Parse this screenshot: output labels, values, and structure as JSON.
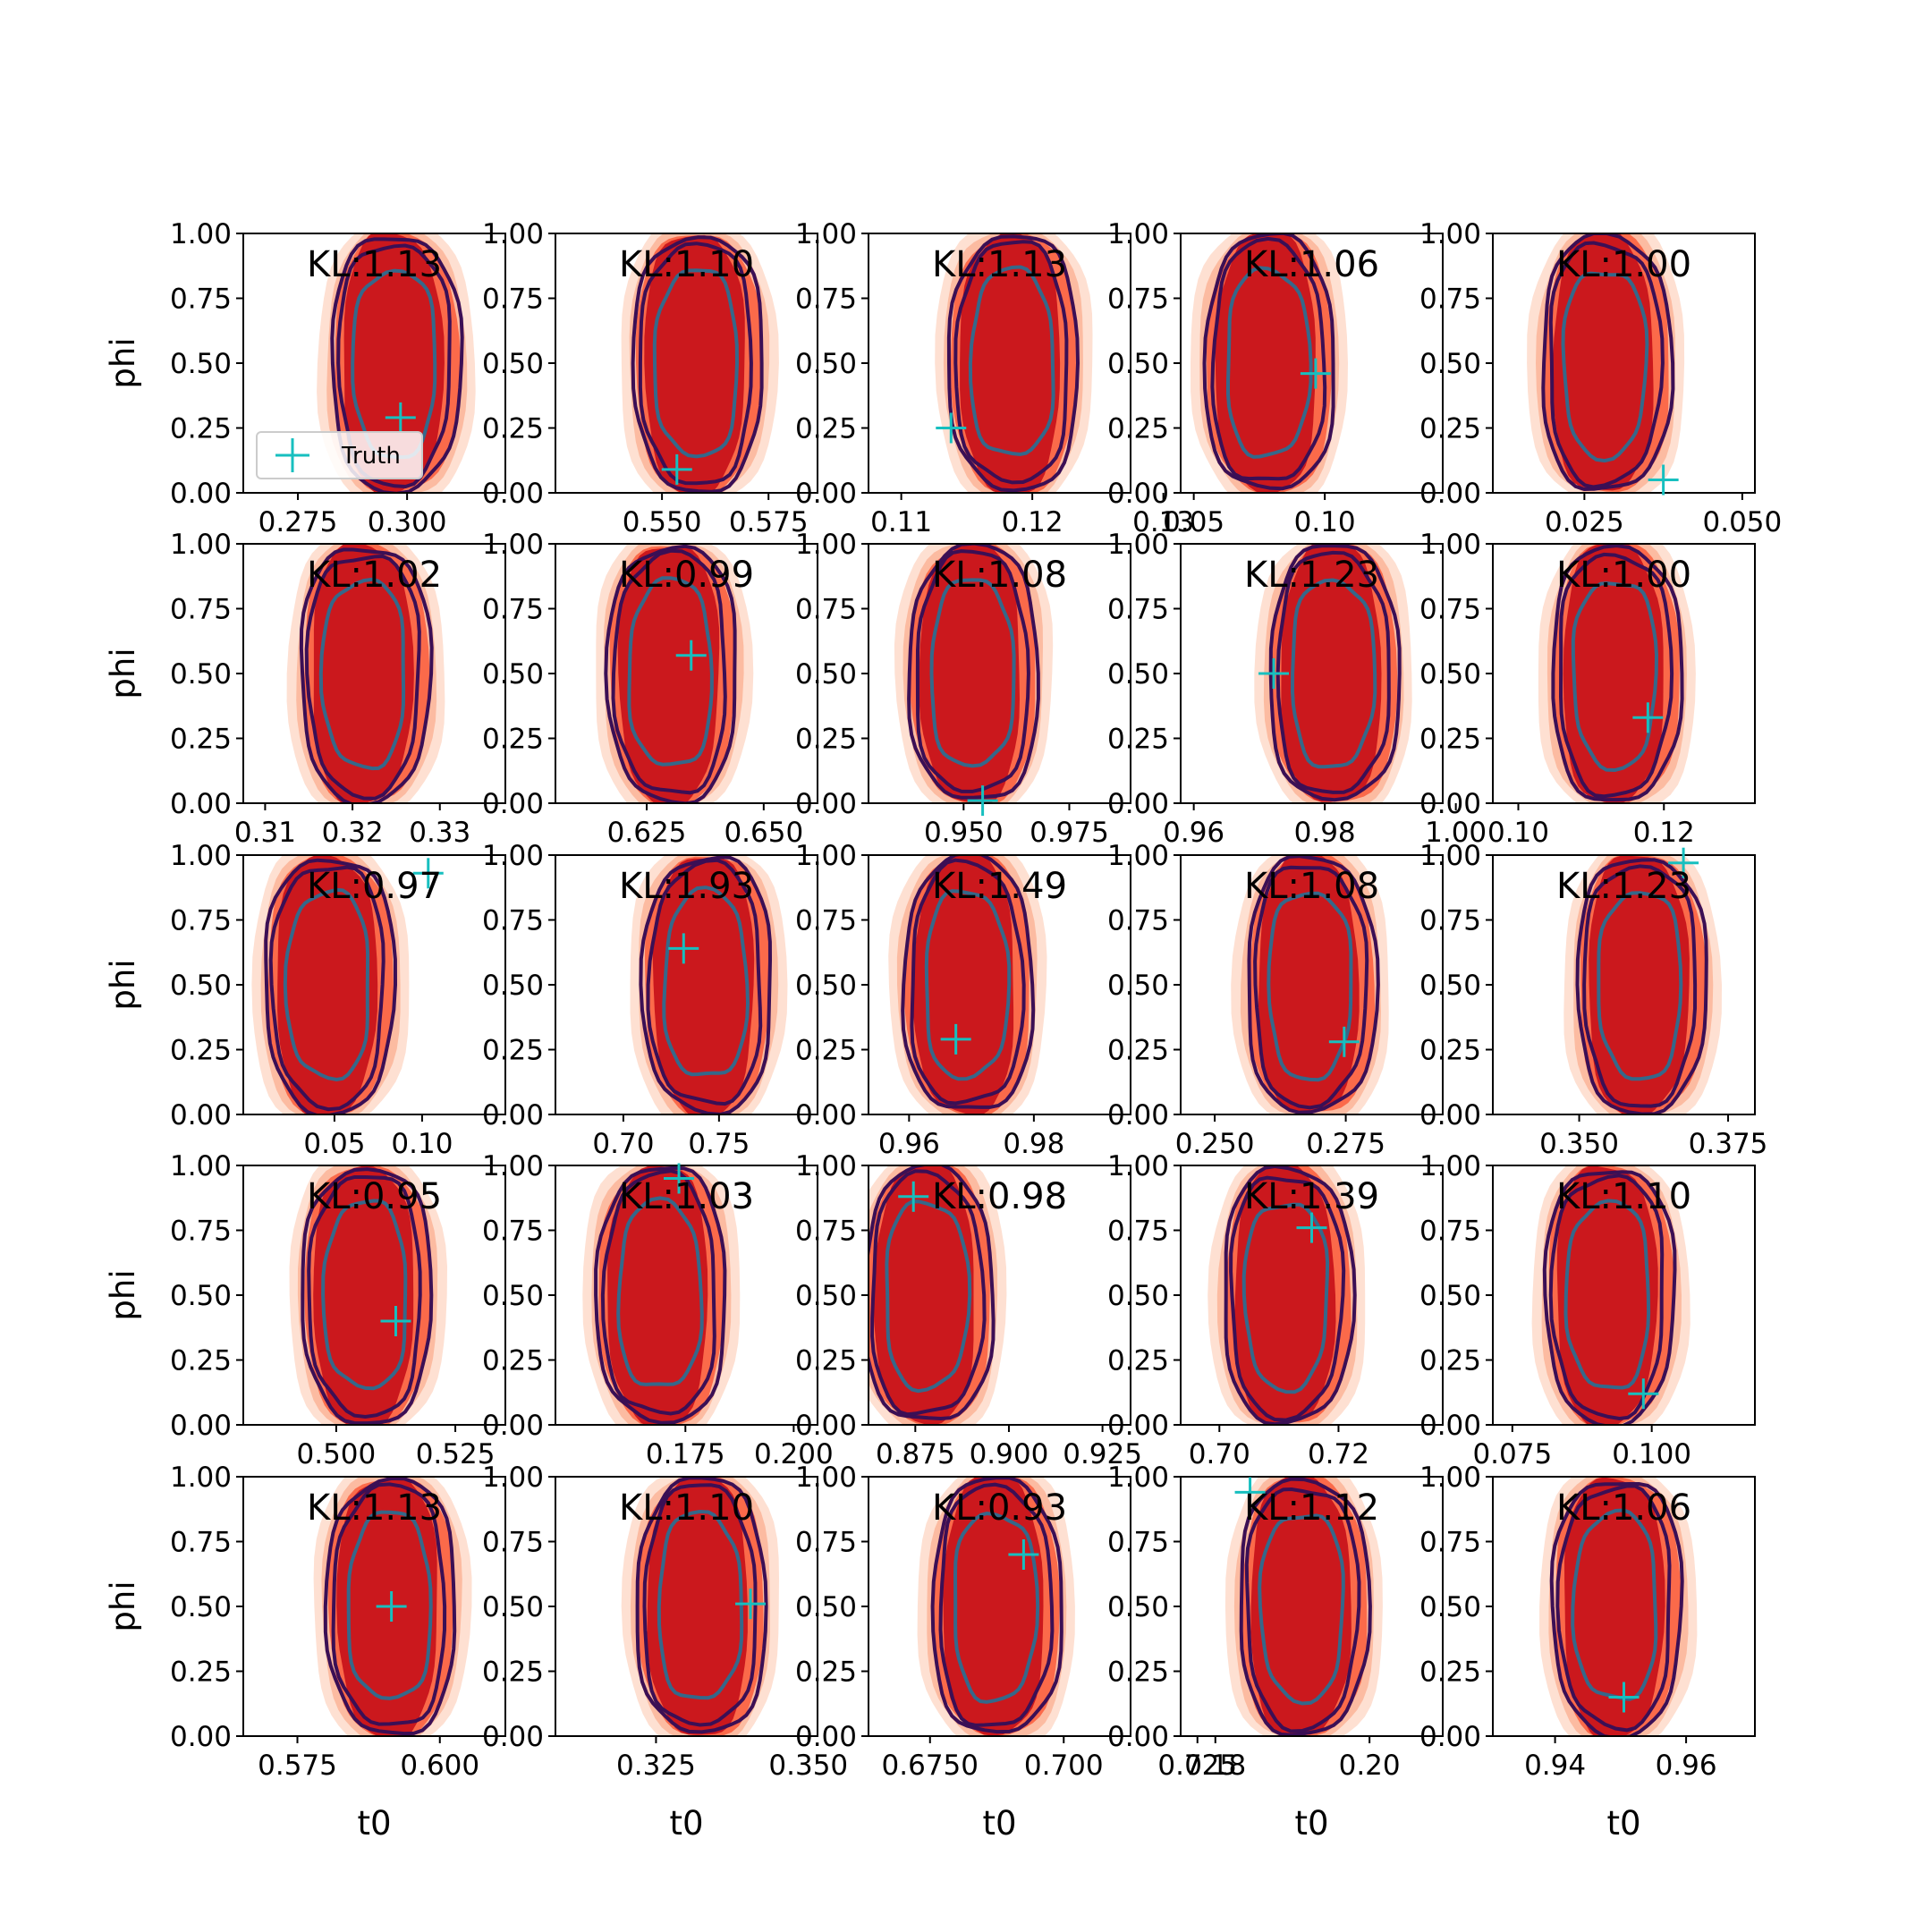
{
  "figure": {
    "legend_label": "Truth",
    "y_axis_label": "phi",
    "x_axis_label": "t0"
  },
  "colors": {
    "truth": "#17bfbf",
    "contour_outer": "#3b0f55",
    "contour_inner": "#35688a",
    "fill_core": "#cb181d",
    "fill_mid": "#fb6a4a",
    "fill_light": "#fcbba1",
    "fill_faint": "#fee0d2"
  },
  "chart_data": [
    {
      "type": "scatter",
      "row": 0,
      "col": 0,
      "title": "KL:1.13",
      "x": [
        0.2985
      ],
      "y": [
        0.29
      ],
      "xticks": [
        0.275,
        0.3
      ],
      "xticklabels": [
        "0.275",
        "0.300"
      ],
      "xlim": [
        0.2625,
        0.3225
      ],
      "ylim": [
        0,
        1
      ],
      "xlabel": "",
      "ylabel": "phi",
      "center_t0": 0.2975,
      "legend": true
    },
    {
      "type": "scatter",
      "row": 0,
      "col": 1,
      "title": "KL:1.10",
      "x": [
        0.5535
      ],
      "y": [
        0.09
      ],
      "xticks": [
        0.55,
        0.575
      ],
      "xticklabels": [
        "0.550",
        "0.575"
      ],
      "xlim": [
        0.525,
        0.5865
      ],
      "ylim": [
        0,
        1
      ],
      "xlabel": "",
      "ylabel": "",
      "center_t0": 0.5585
    },
    {
      "type": "scatter",
      "row": 0,
      "col": 2,
      "title": "KL:1.13",
      "x": [
        0.1138
      ],
      "y": [
        0.25
      ],
      "xticks": [
        0.11,
        0.12,
        0.13
      ],
      "xticklabels": [
        "0.11",
        "0.12",
        "0.13"
      ],
      "xlim": [
        0.1075,
        0.1275
      ],
      "ylim": [
        0,
        1
      ],
      "xlabel": "",
      "ylabel": "",
      "center_t0": 0.1186
    },
    {
      "type": "scatter",
      "row": 0,
      "col": 3,
      "title": "KL:1.06",
      "x": [
        0.0965
      ],
      "y": [
        0.46
      ],
      "xticks": [
        0.05,
        0.1
      ],
      "xticklabels": [
        "0.05",
        "0.10"
      ],
      "xlim": [
        0.045,
        0.145
      ],
      "ylim": [
        0,
        1
      ],
      "xlabel": "",
      "ylabel": "",
      "center_t0": 0.079
    },
    {
      "type": "scatter",
      "row": 0,
      "col": 4,
      "title": "KL:1.00",
      "x": [
        0.0375
      ],
      "y": [
        0.05
      ],
      "xticks": [
        0.025,
        0.05
      ],
      "xticklabels": [
        "0.025",
        "0.050"
      ],
      "xlim": [
        0.0105,
        0.052
      ],
      "ylim": [
        0,
        1
      ],
      "xlabel": "",
      "ylabel": "",
      "center_t0": 0.0285
    },
    {
      "type": "scatter",
      "row": 1,
      "col": 0,
      "title": "KL:1.02",
      "x": [],
      "y": [],
      "xticks": [
        0.31,
        0.32,
        0.33
      ],
      "xticklabels": [
        "0.31",
        "0.32",
        "0.33"
      ],
      "xlim": [
        0.3075,
        0.3375
      ],
      "ylim": [
        0,
        1
      ],
      "xlabel": "",
      "ylabel": "phi",
      "center_t0": 0.3215
    },
    {
      "type": "scatter",
      "row": 1,
      "col": 1,
      "title": "KL:0.99",
      "x": [
        0.6345
      ],
      "y": [
        0.57
      ],
      "xticks": [
        0.625,
        0.65
      ],
      "xticklabels": [
        "0.625",
        "0.650"
      ],
      "xlim": [
        0.6055,
        0.6615
      ],
      "ylim": [
        0,
        1
      ],
      "xlabel": "",
      "ylabel": "",
      "center_t0": 0.6305
    },
    {
      "type": "scatter",
      "row": 1,
      "col": 2,
      "title": "KL:1.08",
      "x": [
        0.9545
      ],
      "y": [
        0.01
      ],
      "xticks": [
        0.95,
        0.975
      ],
      "xticklabels": [
        "0.950",
        "0.975"
      ],
      "xlim": [
        0.9275,
        0.9895
      ],
      "ylim": [
        0,
        1
      ],
      "xlabel": "",
      "ylabel": "",
      "center_t0": 0.9525
    },
    {
      "type": "scatter",
      "row": 1,
      "col": 3,
      "title": "KL:1.23",
      "x": [
        0.9722
      ],
      "y": [
        0.5
      ],
      "xticks": [
        0.96,
        0.98,
        1.0
      ],
      "xticklabels": [
        "0.96",
        "0.98",
        "1.00"
      ],
      "xlim": [
        0.958,
        0.998
      ],
      "ylim": [
        0,
        1
      ],
      "xlabel": "",
      "ylabel": "",
      "center_t0": 0.9815
    },
    {
      "type": "scatter",
      "row": 1,
      "col": 4,
      "title": "KL:1.00",
      "x": [
        0.1178
      ],
      "y": [
        0.33
      ],
      "xticks": [
        0.1,
        0.12
      ],
      "xticklabels": [
        "0.10",
        "0.12"
      ],
      "xlim": [
        0.0965,
        0.1325
      ],
      "ylim": [
        0,
        1
      ],
      "xlabel": "",
      "ylabel": "",
      "center_t0": 0.1135
    },
    {
      "type": "scatter",
      "row": 2,
      "col": 0,
      "title": "KL:0.97",
      "x": [
        0.1035
      ],
      "y": [
        0.93
      ],
      "xticks": [
        0.05,
        0.1
      ],
      "xticklabels": [
        "0.05",
        "0.10"
      ],
      "xlim": [
        -0.002,
        0.1475
      ],
      "ylim": [
        0,
        1
      ],
      "xlabel": "",
      "ylabel": "phi",
      "center_t0": 0.0475
    },
    {
      "type": "scatter",
      "row": 2,
      "col": 1,
      "title": "KL:1.93",
      "x": [
        0.7315
      ],
      "y": [
        0.64
      ],
      "xticks": [
        0.7,
        0.75
      ],
      "xticklabels": [
        "0.70",
        "0.75"
      ],
      "xlim": [
        0.6645,
        0.8015
      ],
      "ylim": [
        0,
        1
      ],
      "xlabel": "",
      "ylabel": "",
      "center_t0": 0.744
    },
    {
      "type": "scatter",
      "row": 2,
      "col": 2,
      "title": "KL:1.49",
      "x": [
        0.9675
      ],
      "y": [
        0.29
      ],
      "xticks": [
        0.96,
        0.98
      ],
      "xticklabels": [
        "0.96",
        "0.98"
      ],
      "xlim": [
        0.9535,
        0.9955
      ],
      "ylim": [
        0,
        1
      ],
      "xlabel": "",
      "ylabel": "",
      "center_t0": 0.9695
    },
    {
      "type": "scatter",
      "row": 2,
      "col": 3,
      "title": "KL:1.08",
      "x": [
        0.2747
      ],
      "y": [
        0.28
      ],
      "xticks": [
        0.25,
        0.275
      ],
      "xticklabels": [
        "0.250",
        "0.275"
      ],
      "xlim": [
        0.2435,
        0.2935
      ],
      "ylim": [
        0,
        1
      ],
      "xlabel": "",
      "ylabel": "",
      "center_t0": 0.2685
    },
    {
      "type": "scatter",
      "row": 2,
      "col": 4,
      "title": "KL:1.23",
      "x": [
        0.3675
      ],
      "y": [
        0.97
      ],
      "xticks": [
        0.35,
        0.375
      ],
      "xticklabels": [
        "0.350",
        "0.375"
      ],
      "xlim": [
        0.3355,
        0.3795
      ],
      "ylim": [
        0,
        1
      ],
      "xlabel": "",
      "ylabel": "",
      "center_t0": 0.3605
    },
    {
      "type": "scatter",
      "row": 3,
      "col": 0,
      "title": "KL:0.95",
      "x": [
        0.5125
      ],
      "y": [
        0.4
      ],
      "xticks": [
        0.5,
        0.525
      ],
      "xticklabels": [
        "0.500",
        "0.525"
      ],
      "xlim": [
        0.4805,
        0.5355
      ],
      "ylim": [
        0,
        1
      ],
      "xlabel": "",
      "ylabel": "phi",
      "center_t0": 0.5065
    },
    {
      "type": "scatter",
      "row": 3,
      "col": 1,
      "title": "KL:1.03",
      "x": [
        0.1735
      ],
      "y": [
        0.95
      ],
      "xticks": [
        0.175,
        0.2
      ],
      "xticklabels": [
        "0.175",
        "0.200"
      ],
      "xlim": [
        0.145,
        0.2055
      ],
      "ylim": [
        0,
        1
      ],
      "xlabel": "",
      "ylabel": "",
      "center_t0": 0.1695
    },
    {
      "type": "scatter",
      "row": 3,
      "col": 2,
      "title": "KL:0.98",
      "x": [
        0.8745
      ],
      "y": [
        0.88
      ],
      "xticks": [
        0.875,
        0.9,
        0.925
      ],
      "xticklabels": [
        "0.875",
        "0.900",
        "0.925"
      ],
      "xlim": [
        0.8625,
        0.9325
      ],
      "ylim": [
        0,
        1
      ],
      "xlabel": "",
      "ylabel": "",
      "center_t0": 0.8785
    },
    {
      "type": "scatter",
      "row": 3,
      "col": 3,
      "title": "KL:1.39",
      "x": [
        0.7155
      ],
      "y": [
        0.76
      ],
      "xticks": [
        0.7,
        0.72
      ],
      "xticklabels": [
        "0.70",
        "0.72"
      ],
      "xlim": [
        0.6935,
        0.7375
      ],
      "ylim": [
        0,
        1
      ],
      "xlabel": "",
      "ylabel": "",
      "center_t0": 0.7115
    },
    {
      "type": "scatter",
      "row": 3,
      "col": 4,
      "title": "KL:1.10",
      "x": [
        0.0985
      ],
      "y": [
        0.12
      ],
      "xticks": [
        0.075,
        0.1
      ],
      "xticklabels": [
        "0.075",
        "0.100"
      ],
      "xlim": [
        0.0715,
        0.1185
      ],
      "ylim": [
        0,
        1
      ],
      "xlabel": "",
      "ylabel": "",
      "center_t0": 0.0925
    },
    {
      "type": "scatter",
      "row": 4,
      "col": 0,
      "title": "KL:1.13",
      "x": [
        0.5915
      ],
      "y": [
        0.5
      ],
      "xticks": [
        0.575,
        0.6
      ],
      "xticklabels": [
        "0.575",
        "0.600"
      ],
      "xlim": [
        0.5655,
        0.6115
      ],
      "ylim": [
        0,
        1
      ],
      "xlabel": "",
      "ylabel": "phi",
      "center_t0": 0.5915
    },
    {
      "type": "scatter",
      "row": 4,
      "col": 1,
      "title": "KL:1.10",
      "x": [
        0.3405
      ],
      "y": [
        0.51
      ],
      "xticks": [
        0.325,
        0.35
      ],
      "xticklabels": [
        "0.325",
        "0.350"
      ],
      "xlim": [
        0.3085,
        0.3515
      ],
      "ylim": [
        0,
        1
      ],
      "xlabel": "",
      "ylabel": "",
      "center_t0": 0.3325
    },
    {
      "type": "scatter",
      "row": 4,
      "col": 2,
      "title": "KL:0.93",
      "x": [
        0.6925
      ],
      "y": [
        0.7
      ],
      "xticks": [
        0.675,
        0.7,
        0.725
      ],
      "xticklabels": [
        "0.6750",
        "0.700",
        "0.725"
      ],
      "xlim": [
        0.6635,
        0.7125
      ],
      "ylim": [
        0,
        1
      ],
      "xlabel": "",
      "ylabel": "",
      "center_t0": 0.6875
    },
    {
      "type": "scatter",
      "row": 4,
      "col": 3,
      "title": "KL:1.12",
      "x": [
        0.1845
      ],
      "y": [
        0.94
      ],
      "xticks": [
        0.18,
        0.2
      ],
      "xticklabels": [
        "0.18",
        "0.20"
      ],
      "xlim": [
        0.1755,
        0.2095
      ],
      "ylim": [
        0,
        1
      ],
      "xlabel": "",
      "ylabel": "",
      "center_t0": 0.1915
    },
    {
      "type": "scatter",
      "row": 4,
      "col": 4,
      "title": "KL:1.06",
      "x": [
        0.9505
      ],
      "y": [
        0.15
      ],
      "xticks": [
        0.94,
        0.96
      ],
      "xticklabels": [
        "0.94",
        "0.96"
      ],
      "xlim": [
        0.9305,
        0.9705
      ],
      "ylim": [
        0,
        1
      ],
      "xlabel": "",
      "ylabel": "",
      "center_t0": 0.9495
    }
  ]
}
